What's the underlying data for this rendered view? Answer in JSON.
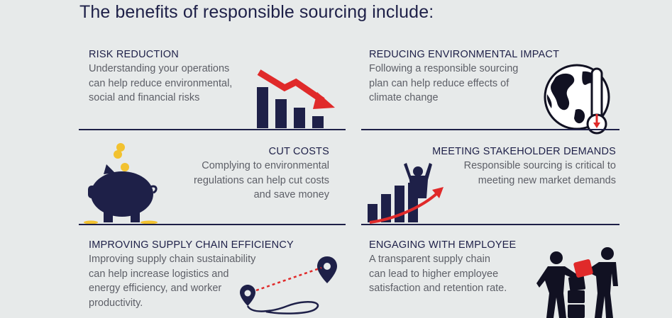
{
  "title": "The benefits of responsible sourcing include:",
  "benefits": {
    "risk_reduction": {
      "heading": "RISK REDUCTION",
      "description": "Understanding your operations\ncan help reduce environmental,\nsocial and financial risks",
      "icon": "declining-bar-chart-icon"
    },
    "environmental_impact": {
      "heading": "REDUCING ENVIRONMENTAL IMPACT",
      "description": "Following a responsible sourcing\nplan can help reduce effects of\nclimate change",
      "icon": "globe-thermometer-icon"
    },
    "cut_costs": {
      "heading": "CUT COSTS",
      "description": "Complying to environmental\nregulations can help cut costs\nand save money",
      "icon": "piggy-bank-icon"
    },
    "stakeholder_demands": {
      "heading": "MEETING STAKEHOLDER DEMANDS",
      "description": "Responsible sourcing is critical to\nmeeting new market demands",
      "icon": "growth-chart-person-icon"
    },
    "supply_chain": {
      "heading": "IMPROVING SUPPLY CHAIN EFFICIENCY",
      "description": "Improving supply chain sustainability\ncan help increase logistics and\nenergy efficiency, and worker\nproductivity.",
      "icon": "route-map-pins-icon"
    },
    "employee": {
      "heading": "ENGAGING WITH EMPLOYEE",
      "description": "A transparent supply chain\ncan lead to higher employee\nsatisfaction and retention rate.",
      "icon": "teamwork-blocks-icon"
    }
  },
  "colors": {
    "navy": "#1e2048",
    "accent_red": "#e02a2a",
    "gold": "#f2c230",
    "background": "#e7eaea"
  }
}
